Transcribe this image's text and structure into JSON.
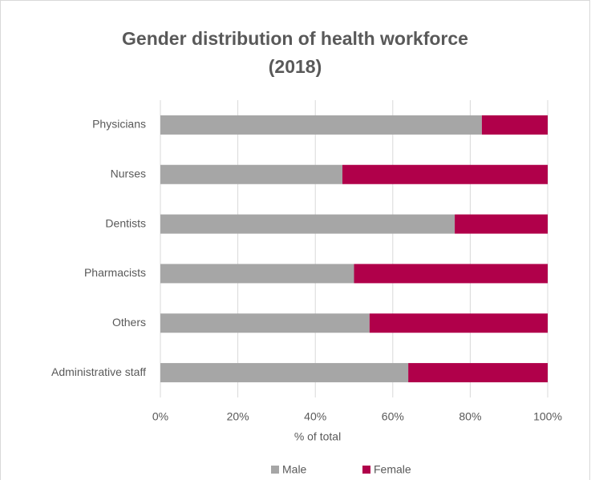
{
  "chart_data": {
    "type": "stacked_barh",
    "title": [
      "Gender distribution of health workforce",
      "(2018)"
    ],
    "categories": [
      "Physicians",
      "Nurses",
      "Dentists",
      "Pharmacists",
      "Others",
      "Administrative staff"
    ],
    "series": [
      {
        "name": "Male",
        "color": "#a6a6a6",
        "values": [
          83,
          47,
          76,
          50,
          54,
          64
        ]
      },
      {
        "name": "Female",
        "color": "#b0004a",
        "values": [
          17,
          53,
          24,
          50,
          46,
          36
        ]
      }
    ],
    "xlabel": "% of total",
    "xlim": [
      0,
      100
    ],
    "xticks": [
      {
        "value": 0,
        "label": "0%"
      },
      {
        "value": 20,
        "label": "20%"
      },
      {
        "value": 40,
        "label": "40%"
      },
      {
        "value": 60,
        "label": "60%"
      },
      {
        "value": 80,
        "label": "80%"
      },
      {
        "value": 100,
        "label": "100%"
      }
    ],
    "grid": true,
    "legend": "bottom"
  }
}
